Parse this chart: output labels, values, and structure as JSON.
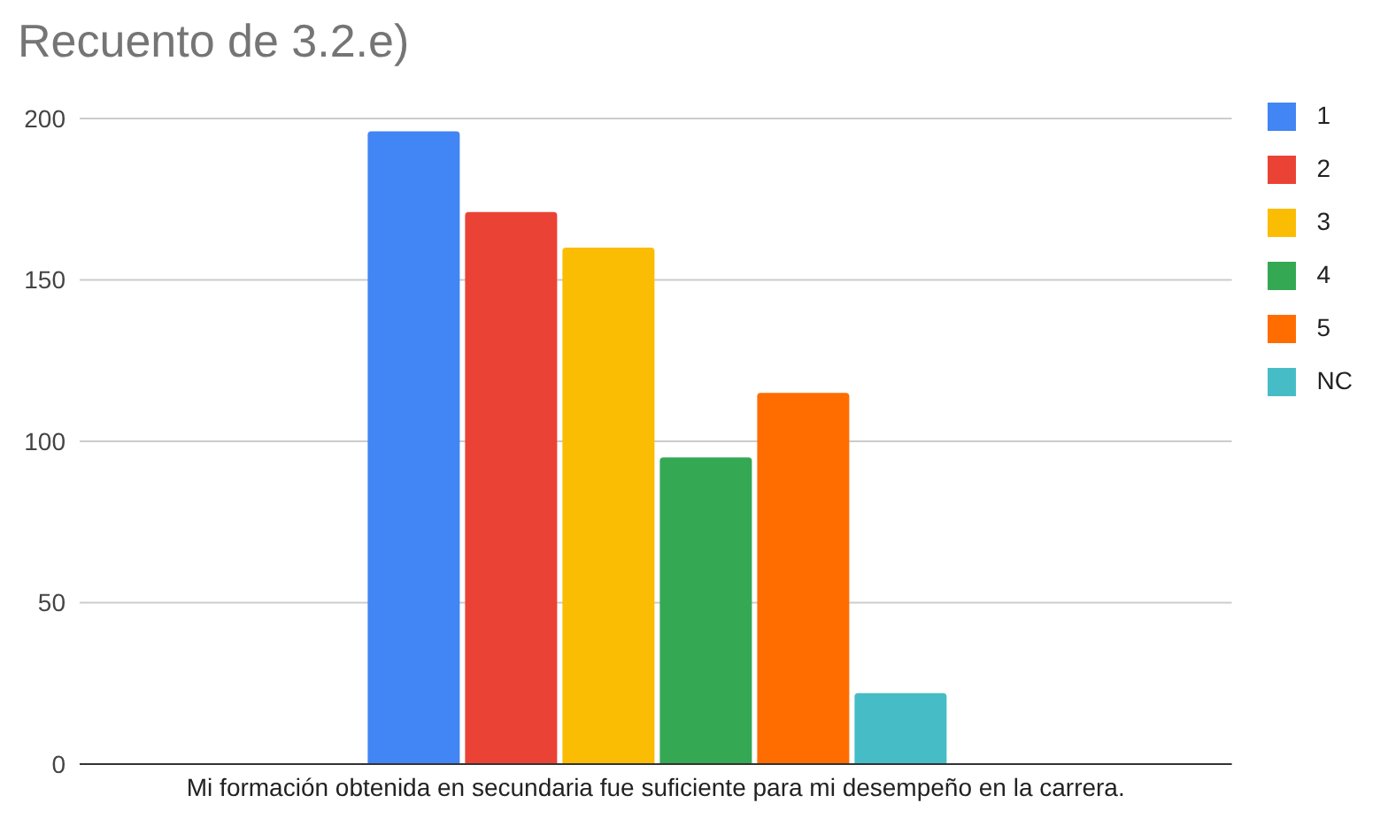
{
  "chart_data": {
    "type": "bar",
    "title": "Recuento de 3.2.e)",
    "categories": [
      "Mi formación obtenida en secundaria fue suficiente para mi desempeño en la carrera."
    ],
    "series": [
      {
        "name": "1",
        "color": "#4285f4",
        "values": [
          196
        ]
      },
      {
        "name": "2",
        "color": "#ea4335",
        "values": [
          171
        ]
      },
      {
        "name": "3",
        "color": "#fbbc04",
        "values": [
          160
        ]
      },
      {
        "name": "4",
        "color": "#34a853",
        "values": [
          95
        ]
      },
      {
        "name": "5",
        "color": "#ff6d01",
        "values": [
          115
        ]
      },
      {
        "name": "NC",
        "color": "#46bdc6",
        "values": [
          22
        ]
      }
    ],
    "ylim": [
      0,
      200
    ],
    "yticks": [
      0,
      50,
      100,
      150,
      200
    ],
    "grid": "y",
    "legend": "right"
  }
}
